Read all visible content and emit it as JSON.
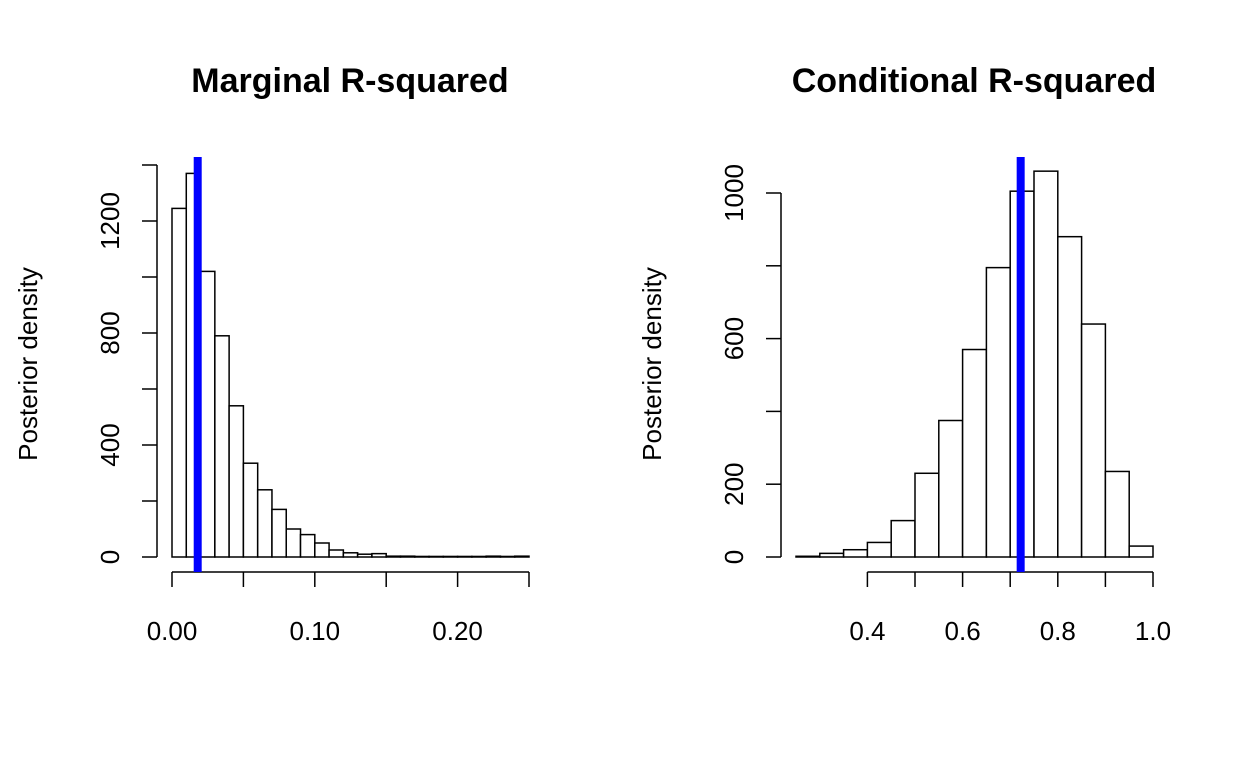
{
  "colors": {
    "reference_line": "#0000ff",
    "bar_fill": "#ffffff",
    "bar_stroke": "#000000"
  },
  "chart_data": [
    {
      "type": "bar",
      "title": "Marginal R-squared",
      "ylabel": "Posterior density",
      "xlabel": "",
      "bin_width": 0.01,
      "bin_starts": [
        0.0,
        0.01,
        0.02,
        0.03,
        0.04,
        0.05,
        0.06,
        0.07,
        0.08,
        0.09,
        0.1,
        0.11,
        0.12,
        0.13,
        0.14,
        0.15,
        0.16,
        0.17,
        0.18,
        0.19,
        0.2,
        0.21,
        0.22,
        0.23,
        0.24
      ],
      "values": [
        1245,
        1370,
        1020,
        790,
        540,
        335,
        240,
        170,
        100,
        80,
        50,
        25,
        15,
        10,
        12,
        3,
        3,
        2,
        2,
        2,
        2,
        2,
        3,
        2,
        3
      ],
      "xlim": [
        0.0,
        0.25
      ],
      "ylim": [
        0,
        1400
      ],
      "x_ticks": [
        0.0,
        0.05,
        0.1,
        0.15,
        0.2,
        0.25
      ],
      "x_tick_labels": [
        "0.00",
        "",
        "0.10",
        "",
        "0.20",
        ""
      ],
      "y_ticks": [
        0,
        200,
        400,
        600,
        800,
        1000,
        1200,
        1400
      ],
      "y_tick_labels": [
        "0",
        "",
        "400",
        "",
        "800",
        "",
        "1200",
        ""
      ],
      "reference_line": 0.018,
      "grid": false
    },
    {
      "type": "bar",
      "title": "Conditional R-squared",
      "ylabel": "Posterior density",
      "xlabel": "",
      "bin_width": 0.05,
      "bin_starts": [
        0.25,
        0.3,
        0.35,
        0.4,
        0.45,
        0.5,
        0.55,
        0.6,
        0.65,
        0.7,
        0.75,
        0.8,
        0.85,
        0.9,
        0.95
      ],
      "values": [
        2,
        10,
        20,
        40,
        100,
        230,
        375,
        570,
        795,
        1005,
        1060,
        880,
        640,
        235,
        30
      ],
      "xlim": [
        0.25,
        1.0
      ],
      "ylim": [
        0,
        1000
      ],
      "x_ticks": [
        0.4,
        0.5,
        0.6,
        0.7,
        0.8,
        0.9,
        1.0
      ],
      "x_tick_labels": [
        "0.4",
        "",
        "0.6",
        "",
        "0.8",
        "",
        "1.0"
      ],
      "y_ticks": [
        0,
        200,
        400,
        600,
        800,
        1000
      ],
      "y_tick_labels": [
        "0",
        "200",
        "",
        "600",
        "",
        "1000"
      ],
      "reference_line": 0.722,
      "grid": false
    }
  ]
}
